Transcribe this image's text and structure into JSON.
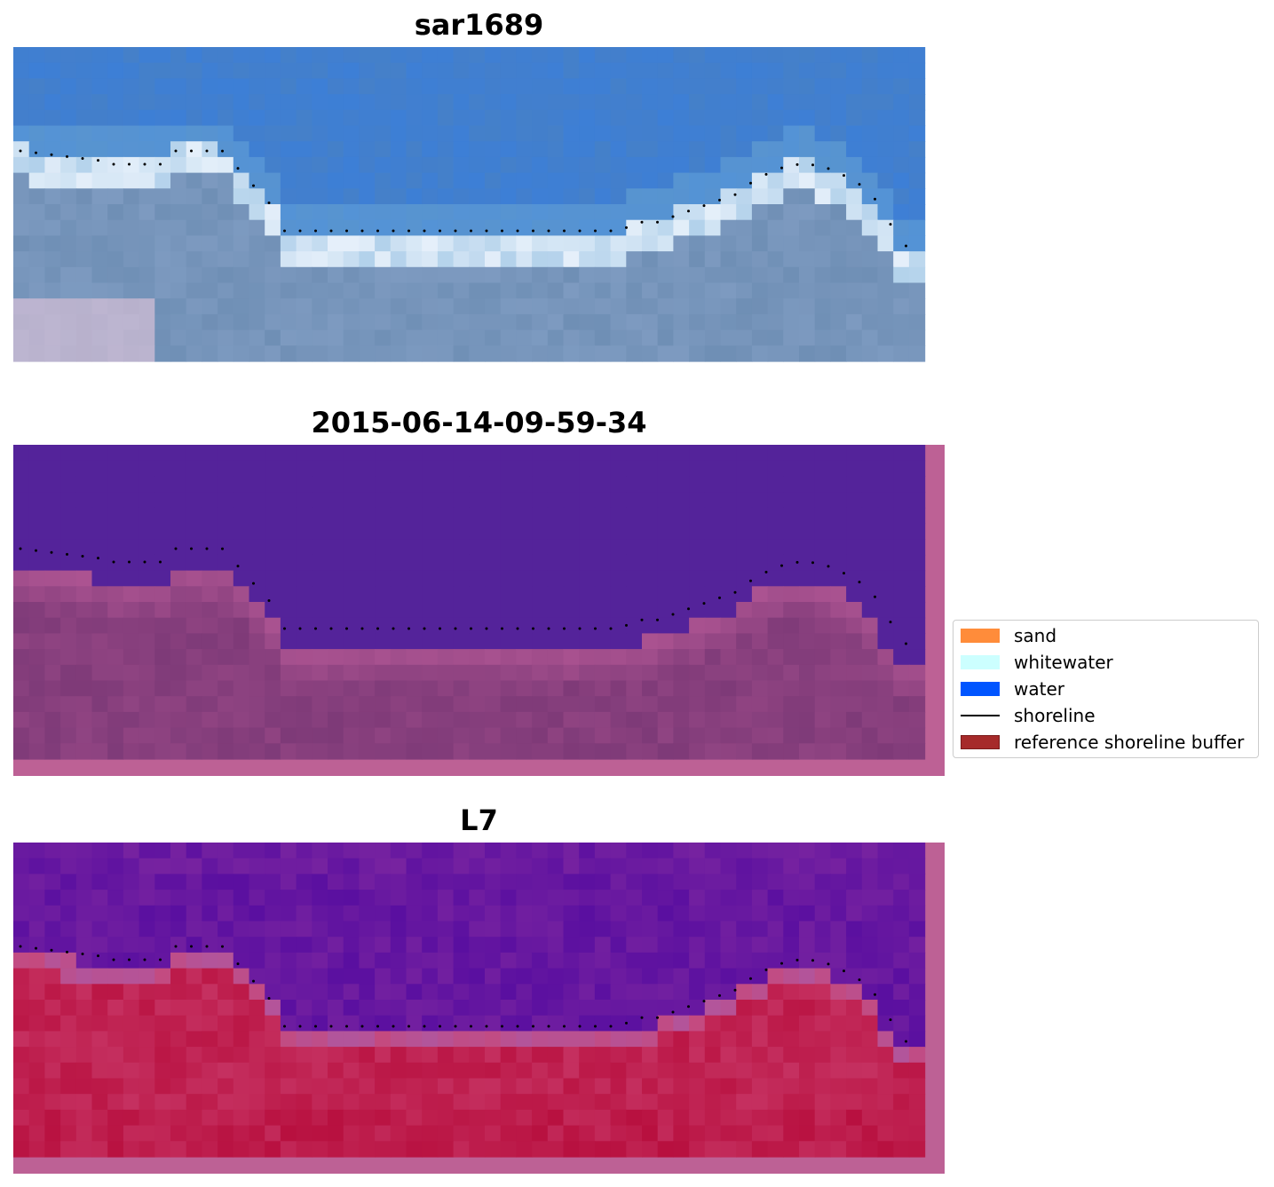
{
  "panels": [
    {
      "title": "sar1689",
      "kind": "rgb"
    },
    {
      "title": "2015-06-14-09-59-34",
      "kind": "classified"
    },
    {
      "title": "L7",
      "kind": "mndwi"
    }
  ],
  "legend": {
    "items": [
      {
        "label": "sand",
        "color": "#ff8c3a",
        "type": "patch"
      },
      {
        "label": "whitewater",
        "color": "#ccffff",
        "type": "patch"
      },
      {
        "label": "water",
        "color": "#0055ff",
        "type": "patch"
      },
      {
        "label": "shoreline",
        "color": "#000000",
        "type": "line"
      },
      {
        "label": "reference shoreline buffer",
        "color": "#a62a2a",
        "type": "patch"
      }
    ]
  },
  "colors": {
    "deep_water": "#3f6fb6",
    "surf": "#d9e8f5",
    "beach": "#6f8fb5",
    "class_water": "#54239a",
    "class_land": "#7e3a78",
    "buffer_pink": "#bd6195",
    "mndwi_water": "#6a1a9e",
    "mndwi_land": "#c0284f"
  }
}
